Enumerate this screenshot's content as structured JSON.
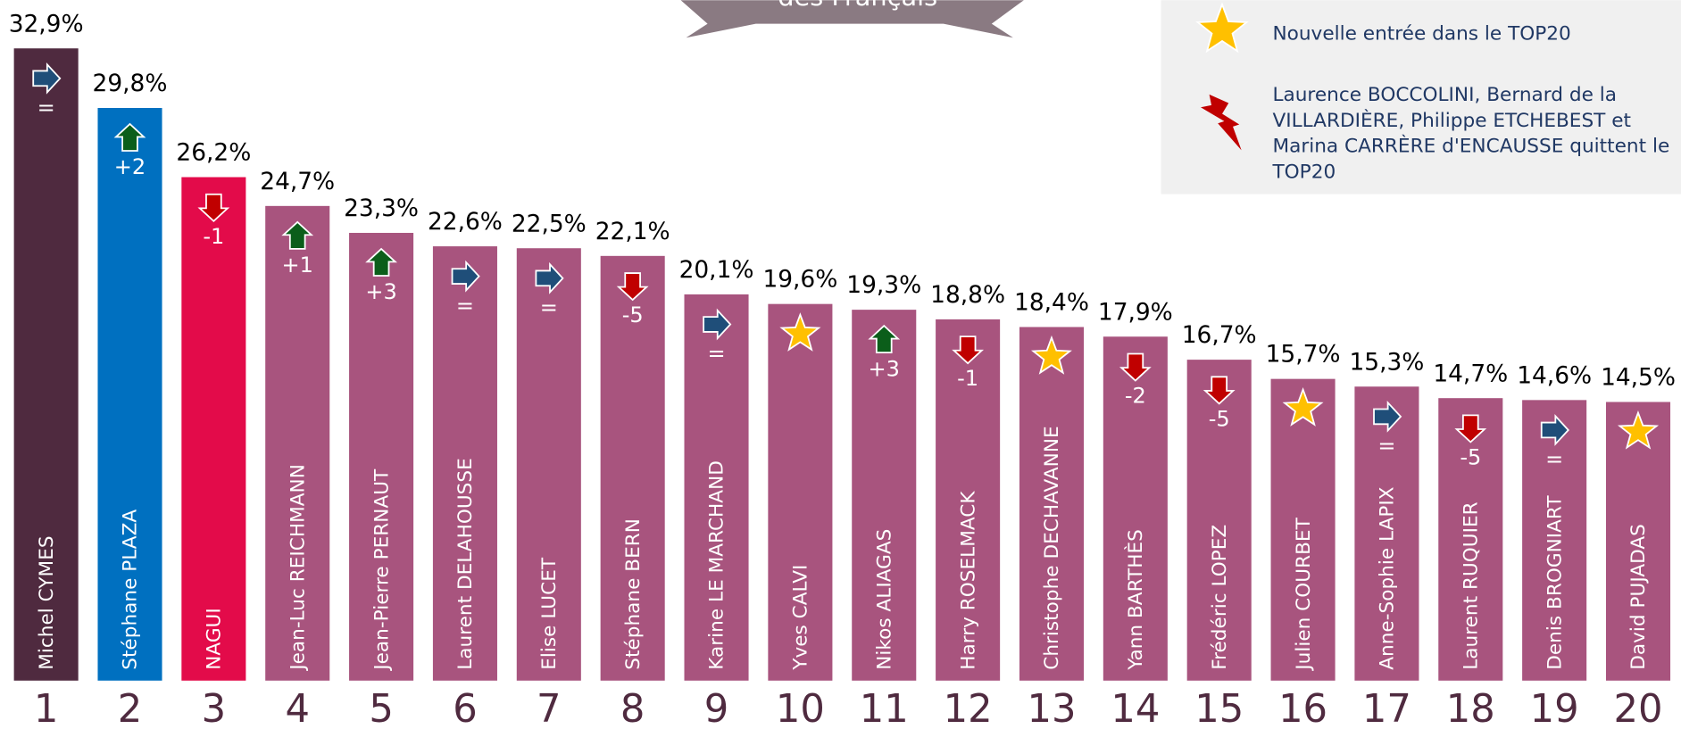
{
  "chart_data": {
    "type": "bar",
    "title": "des Français",
    "categories": [
      "1",
      "2",
      "3",
      "4",
      "5",
      "6",
      "7",
      "8",
      "9",
      "10",
      "11",
      "12",
      "13",
      "14",
      "15",
      "16",
      "17",
      "18",
      "19",
      "20"
    ],
    "names": [
      "Michel CYMES",
      "Stéphane PLAZA",
      "NAGUI",
      "Jean-Luc REICHMANN",
      "Jean-Pierre PERNAUT",
      "Laurent DELAHOUSSE",
      "Elise LUCET",
      "Stéphane BERN",
      "Karine LE MARCHAND",
      "Yves CALVI",
      "Nikos ALIAGAS",
      "Harry ROSELMACK",
      "Christophe DECHAVANNE",
      "Yann BARTHÈS",
      "Frédéric LOPEZ",
      "Julien COURBET",
      "Anne-Sophie LAPIX",
      "Laurent RUQUIER",
      "Denis BROGNIART",
      "David PUJADAS"
    ],
    "values": [
      32.9,
      29.8,
      26.2,
      24.7,
      23.3,
      22.6,
      22.5,
      22.1,
      20.1,
      19.6,
      19.3,
      18.8,
      18.4,
      17.9,
      16.7,
      15.7,
      15.3,
      14.7,
      14.6,
      14.5
    ],
    "value_labels": [
      "32,9%",
      "29,8%",
      "26,2%",
      "24,7%",
      "23,3%",
      "22,6%",
      "22,5%",
      "22,1%",
      "20,1%",
      "19,6%",
      "19,3%",
      "18,8%",
      "18,4%",
      "17,9%",
      "16,7%",
      "15,7%",
      "15,3%",
      "14,7%",
      "14,6%",
      "14,5%"
    ],
    "changes": [
      "=",
      "+2",
      "-1",
      "+1",
      "+3",
      "=",
      "=",
      "-5",
      "=",
      null,
      "+3",
      "-1",
      null,
      "-2",
      "-5",
      null,
      "=",
      "-5",
      "=",
      null
    ],
    "colors": [
      "#4f2a3f",
      "#0070c0",
      "#e30b4a",
      "#a8547e",
      "#a8547e",
      "#a8547e",
      "#a8547e",
      "#a8547e",
      "#a8547e",
      "#a8547e",
      "#a8547e",
      "#a8547e",
      "#a8547e",
      "#a8547e",
      "#a8547e",
      "#a8547e",
      "#a8547e",
      "#a8547e",
      "#a8547e",
      "#a8547e"
    ],
    "legend": {
      "new_entry": "Nouvelle entrée dans le TOP20",
      "left_lines": [
        "Laurence BOCCOLINI, Bernard de la",
        "VILLARDIÈRE, Philippe ETCHEBEST et",
        "Marina CARRÈRE d'ENCAUSSE quittent le",
        "TOP20"
      ]
    }
  }
}
